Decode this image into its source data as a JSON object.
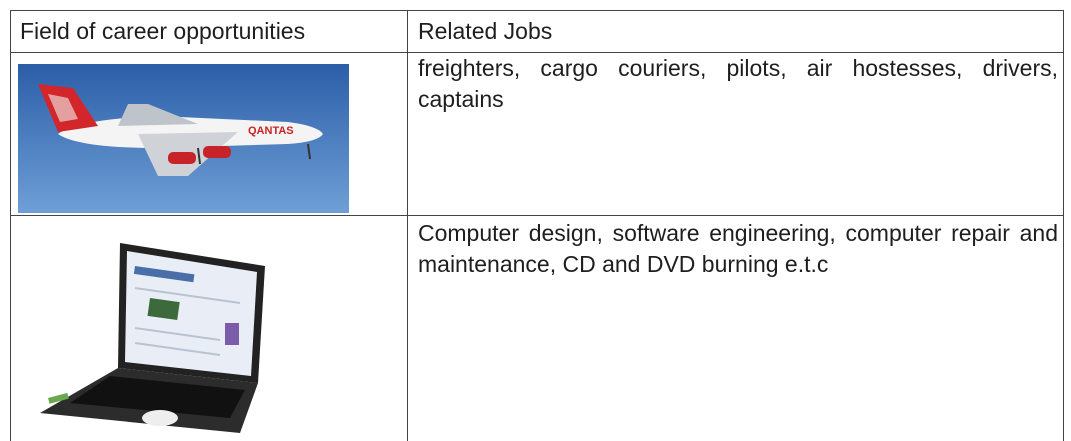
{
  "table": {
    "header": [
      "Field of career opportunities",
      "Related Jobs"
    ],
    "rows": [
      {
        "related_jobs": "freighters, cargo couriers, pilots, air hostesses, drivers, captains"
      },
      {
        "related_jobs": "Computer design, software engineering, computer repair and maintenance, CD and DVD burning e.t.c"
      }
    ]
  }
}
